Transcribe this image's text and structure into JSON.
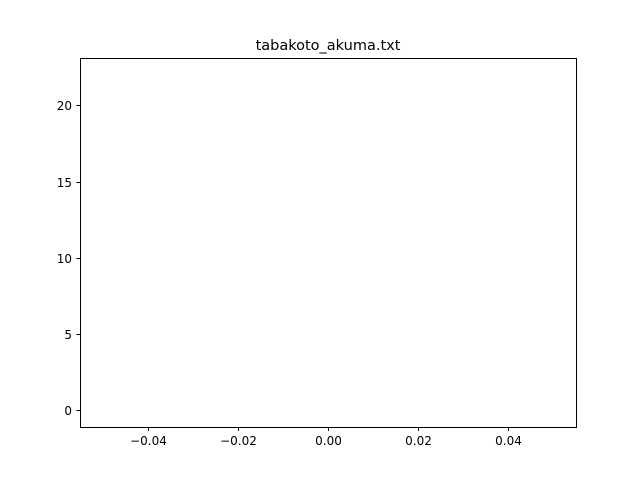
{
  "chart_data": {
    "type": "line",
    "title": "tabakoto_akuma.txt",
    "xlabel": "",
    "ylabel": "",
    "xlim": [
      -0.055,
      0.055
    ],
    "ylim": [
      -1.1,
      23.1
    ],
    "xticks": [
      -0.04,
      -0.02,
      0.0,
      0.02,
      0.04
    ],
    "xtick_labels": [
      "−0.04",
      "−0.02",
      "0.00",
      "0.02",
      "0.04"
    ],
    "yticks": [
      0,
      5,
      10,
      15,
      20
    ],
    "ytick_labels": [
      "0",
      "5",
      "10",
      "15",
      "20"
    ],
    "grid": false,
    "series": [
      {
        "x": [],
        "y": []
      }
    ]
  }
}
